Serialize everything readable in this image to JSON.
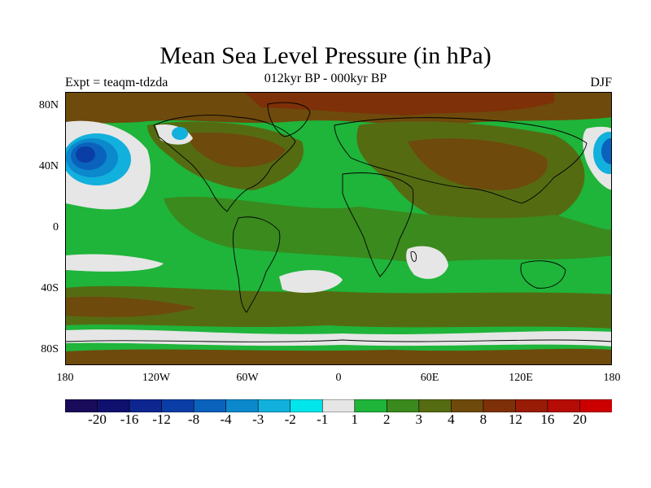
{
  "title": "Mean Sea Level Pressure (in hPa)",
  "subtitle": "012kyr BP - 000kyr BP",
  "experiment": "Expt = teaqm-tdzda",
  "season": "DJF",
  "map": {
    "lat_labels": [
      "80N",
      "40N",
      "0",
      "40S",
      "80S"
    ],
    "lon_labels": [
      "180",
      "120W",
      "60W",
      "0",
      "60E",
      "120E",
      "180"
    ],
    "background_color": "#1fb43a"
  },
  "colorbar": {
    "colors": [
      "#1a0a5a",
      "#10106e",
      "#0d2690",
      "#0a3ea6",
      "#0a62bc",
      "#0c88cc",
      "#12b0dc",
      "#00e6ea",
      "#e6e6e6",
      "#1fb43a",
      "#3a8a1e",
      "#556b12",
      "#6e4a0c",
      "#7e3008",
      "#981c06",
      "#b60c06",
      "#cc0000"
    ],
    "labels": [
      "-20",
      "-16",
      "-12",
      "-8",
      "-4",
      "-3",
      "-2",
      "-1",
      "1",
      "2",
      "3",
      "4",
      "8",
      "12",
      "16",
      "20"
    ]
  }
}
